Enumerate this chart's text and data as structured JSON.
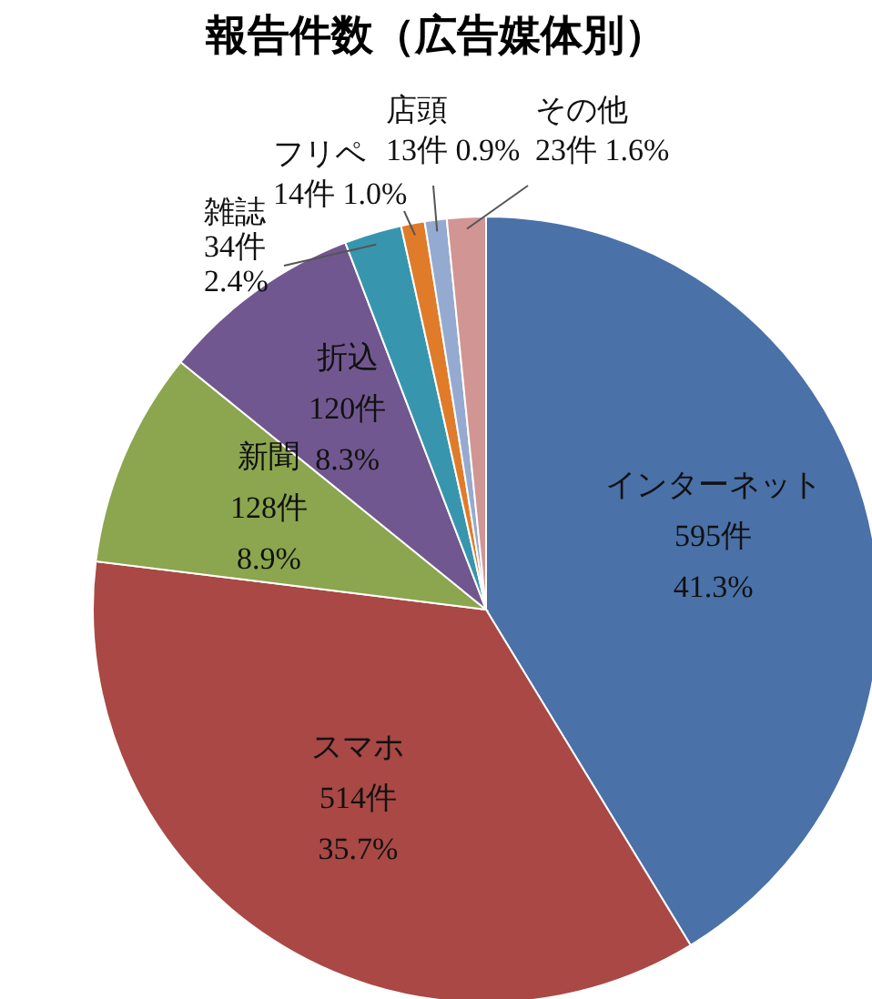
{
  "chart_data": {
    "type": "pie",
    "title": "報告件数（広告媒体別）",
    "categories": [
      "インターネット",
      "スマホ",
      "新聞",
      "折込",
      "雑誌",
      "フリペ",
      "店頭",
      "その他"
    ],
    "values": [
      595,
      514,
      128,
      120,
      34,
      14,
      13,
      23
    ],
    "value_labels": [
      "595件\n41.3%",
      "514件\n35.7%",
      "128件\n8.9%",
      "120件\n8.3%",
      "34件\n2.4%",
      "14件 1.0%",
      "13件 0.9%",
      "23件 1.6%"
    ],
    "colors": [
      "#4a71a8",
      "#a94844",
      "#8ba64e",
      "#71578f",
      "#3796ae",
      "#e07b2a",
      "#94aad0",
      "#d19594"
    ],
    "legend": false
  }
}
